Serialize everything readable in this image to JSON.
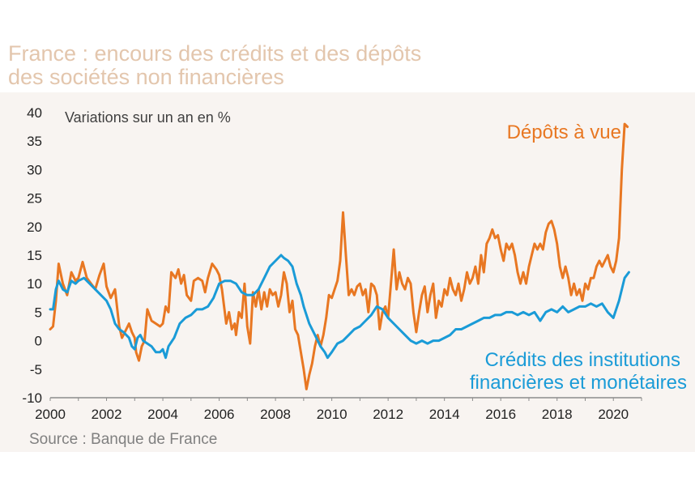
{
  "title_line1": "France : encours des crédits et des dépôts",
  "title_line2": "des sociétés non financières",
  "source": "Source : Banque de France",
  "chart_data": {
    "type": "line",
    "ylabel": "Variations sur un an en %",
    "xlim": [
      2000,
      2021
    ],
    "ylim": [
      -10,
      40
    ],
    "x_ticks": [
      "2000",
      "2002",
      "2004",
      "2006",
      "2008",
      "2010",
      "2012",
      "2014",
      "2016",
      "2018",
      "2020"
    ],
    "y_ticks": [
      "40",
      "35",
      "30",
      "25",
      "20",
      "15",
      "10",
      "5",
      "0",
      "-5",
      "-10"
    ],
    "series": [
      {
        "name": "Dépôts à vue",
        "color": "#e87722",
        "points": [
          [
            2000.0,
            2
          ],
          [
            2000.1,
            2.5
          ],
          [
            2000.2,
            7
          ],
          [
            2000.3,
            13.5
          ],
          [
            2000.45,
            10
          ],
          [
            2000.6,
            8
          ],
          [
            2000.75,
            12
          ],
          [
            2000.9,
            10.5
          ],
          [
            2001.0,
            11
          ],
          [
            2001.15,
            13.8
          ],
          [
            2001.3,
            11
          ],
          [
            2001.45,
            10
          ],
          [
            2001.6,
            9
          ],
          [
            2001.75,
            11.5
          ],
          [
            2001.9,
            13.5
          ],
          [
            2002.0,
            9.5
          ],
          [
            2002.15,
            7.5
          ],
          [
            2002.3,
            9
          ],
          [
            2002.45,
            2.5
          ],
          [
            2002.55,
            0.5
          ],
          [
            2002.7,
            2
          ],
          [
            2002.8,
            3
          ],
          [
            2002.9,
            1.5
          ],
          [
            2003.0,
            0.5
          ],
          [
            2003.05,
            -2
          ],
          [
            2003.15,
            -3.5
          ],
          [
            2003.25,
            -1
          ],
          [
            2003.35,
            0
          ],
          [
            2003.45,
            5.5
          ],
          [
            2003.6,
            3.5
          ],
          [
            2003.75,
            3
          ],
          [
            2003.9,
            2.5
          ],
          [
            2004.0,
            3
          ],
          [
            2004.1,
            6
          ],
          [
            2004.2,
            5
          ],
          [
            2004.3,
            12
          ],
          [
            2004.45,
            11
          ],
          [
            2004.55,
            12.5
          ],
          [
            2004.65,
            10
          ],
          [
            2004.75,
            11.5
          ],
          [
            2004.85,
            8
          ],
          [
            2005.0,
            7
          ],
          [
            2005.1,
            10.5
          ],
          [
            2005.25,
            11
          ],
          [
            2005.4,
            10.5
          ],
          [
            2005.5,
            8.5
          ],
          [
            2005.6,
            11
          ],
          [
            2005.75,
            13.5
          ],
          [
            2005.9,
            12.5
          ],
          [
            2006.0,
            11.5
          ],
          [
            2006.1,
            9
          ],
          [
            2006.25,
            3
          ],
          [
            2006.35,
            5
          ],
          [
            2006.45,
            2
          ],
          [
            2006.55,
            3
          ],
          [
            2006.6,
            1
          ],
          [
            2006.7,
            5
          ],
          [
            2006.8,
            4
          ],
          [
            2006.9,
            10
          ],
          [
            2007.0,
            2.5
          ],
          [
            2007.1,
            -0.5
          ],
          [
            2007.2,
            8.5
          ],
          [
            2007.3,
            6
          ],
          [
            2007.4,
            9
          ],
          [
            2007.5,
            5.5
          ],
          [
            2007.6,
            8.5
          ],
          [
            2007.7,
            6
          ],
          [
            2007.8,
            9
          ],
          [
            2007.9,
            8
          ],
          [
            2008.0,
            8.5
          ],
          [
            2008.1,
            6
          ],
          [
            2008.2,
            8
          ],
          [
            2008.3,
            12
          ],
          [
            2008.4,
            10
          ],
          [
            2008.5,
            5
          ],
          [
            2008.6,
            7
          ],
          [
            2008.7,
            2
          ],
          [
            2008.8,
            1
          ],
          [
            2008.9,
            -2
          ],
          [
            2009.0,
            -5
          ],
          [
            2009.1,
            -8.5
          ],
          [
            2009.2,
            -6
          ],
          [
            2009.3,
            -4
          ],
          [
            2009.4,
            -1
          ],
          [
            2009.5,
            1
          ],
          [
            2009.6,
            -1
          ],
          [
            2009.7,
            1
          ],
          [
            2009.8,
            4
          ],
          [
            2009.9,
            8
          ],
          [
            2010.0,
            7.5
          ],
          [
            2010.1,
            9
          ],
          [
            2010.2,
            10.5
          ],
          [
            2010.3,
            14
          ],
          [
            2010.4,
            22.5
          ],
          [
            2010.5,
            15
          ],
          [
            2010.6,
            8
          ],
          [
            2010.7,
            9
          ],
          [
            2010.8,
            8
          ],
          [
            2010.9,
            9.5
          ],
          [
            2011.0,
            10
          ],
          [
            2011.1,
            8
          ],
          [
            2011.2,
            9
          ],
          [
            2011.3,
            5
          ],
          [
            2011.4,
            10
          ],
          [
            2011.5,
            9.5
          ],
          [
            2011.6,
            8
          ],
          [
            2011.7,
            2
          ],
          [
            2011.8,
            5
          ],
          [
            2011.9,
            6
          ],
          [
            2012.0,
            4
          ],
          [
            2012.1,
            10
          ],
          [
            2012.2,
            16
          ],
          [
            2012.3,
            9
          ],
          [
            2012.4,
            12
          ],
          [
            2012.5,
            10
          ],
          [
            2012.6,
            9
          ],
          [
            2012.7,
            11
          ],
          [
            2012.8,
            10
          ],
          [
            2012.9,
            5
          ],
          [
            2013.0,
            1.5
          ],
          [
            2013.1,
            5
          ],
          [
            2013.2,
            8
          ],
          [
            2013.3,
            9.5
          ],
          [
            2013.4,
            5
          ],
          [
            2013.5,
            8
          ],
          [
            2013.6,
            10
          ],
          [
            2013.7,
            4
          ],
          [
            2013.8,
            7
          ],
          [
            2013.9,
            6
          ],
          [
            2014.0,
            9
          ],
          [
            2014.1,
            8
          ],
          [
            2014.2,
            11
          ],
          [
            2014.3,
            9
          ],
          [
            2014.4,
            8
          ],
          [
            2014.5,
            10
          ],
          [
            2014.6,
            7
          ],
          [
            2014.7,
            9
          ],
          [
            2014.8,
            12
          ],
          [
            2014.9,
            10
          ],
          [
            2015.0,
            11
          ],
          [
            2015.1,
            13
          ],
          [
            2015.2,
            10
          ],
          [
            2015.3,
            15
          ],
          [
            2015.4,
            12
          ],
          [
            2015.5,
            17
          ],
          [
            2015.6,
            18
          ],
          [
            2015.7,
            19.5
          ],
          [
            2015.8,
            18
          ],
          [
            2015.9,
            18.5
          ],
          [
            2016.0,
            16
          ],
          [
            2016.1,
            14
          ],
          [
            2016.2,
            17
          ],
          [
            2016.3,
            16
          ],
          [
            2016.4,
            17
          ],
          [
            2016.5,
            15
          ],
          [
            2016.6,
            12
          ],
          [
            2016.7,
            10
          ],
          [
            2016.8,
            12
          ],
          [
            2016.9,
            10
          ],
          [
            2017.0,
            13
          ],
          [
            2017.1,
            15
          ],
          [
            2017.2,
            17
          ],
          [
            2017.3,
            16
          ],
          [
            2017.4,
            17
          ],
          [
            2017.5,
            16
          ],
          [
            2017.6,
            19
          ],
          [
            2017.7,
            20.5
          ],
          [
            2017.8,
            21
          ],
          [
            2017.9,
            19.5
          ],
          [
            2018.0,
            17
          ],
          [
            2018.1,
            13
          ],
          [
            2018.2,
            11
          ],
          [
            2018.3,
            13
          ],
          [
            2018.4,
            11
          ],
          [
            2018.5,
            8
          ],
          [
            2018.6,
            10
          ],
          [
            2018.7,
            8
          ],
          [
            2018.8,
            9
          ],
          [
            2018.9,
            7
          ],
          [
            2019.0,
            10
          ],
          [
            2019.1,
            9
          ],
          [
            2019.2,
            11
          ],
          [
            2019.3,
            11
          ],
          [
            2019.4,
            13
          ],
          [
            2019.5,
            14
          ],
          [
            2019.6,
            13
          ],
          [
            2019.7,
            14
          ],
          [
            2019.8,
            15
          ],
          [
            2019.9,
            13
          ],
          [
            2020.0,
            12
          ],
          [
            2020.1,
            14
          ],
          [
            2020.2,
            18
          ],
          [
            2020.3,
            30
          ],
          [
            2020.4,
            38
          ],
          [
            2020.5,
            37.5
          ]
        ]
      },
      {
        "name": "Crédits des institutions financières et monétaires",
        "color": "#1a9bd7",
        "points": [
          [
            2000.0,
            5.5
          ],
          [
            2000.1,
            5.5
          ],
          [
            2000.2,
            9
          ],
          [
            2000.3,
            10.5
          ],
          [
            2000.45,
            9
          ],
          [
            2000.6,
            8.5
          ],
          [
            2000.75,
            10.5
          ],
          [
            2000.9,
            10
          ],
          [
            2001.0,
            10.5
          ],
          [
            2001.2,
            11
          ],
          [
            2001.4,
            10
          ],
          [
            2001.6,
            9
          ],
          [
            2001.8,
            8
          ],
          [
            2002.0,
            7
          ],
          [
            2002.15,
            5.5
          ],
          [
            2002.3,
            3
          ],
          [
            2002.45,
            2
          ],
          [
            2002.6,
            1.5
          ],
          [
            2002.8,
            0.5
          ],
          [
            2002.9,
            -1
          ],
          [
            2003.0,
            -1.5
          ],
          [
            2003.1,
            0.5
          ],
          [
            2003.2,
            1
          ],
          [
            2003.3,
            0
          ],
          [
            2003.45,
            -0.5
          ],
          [
            2003.6,
            -1
          ],
          [
            2003.75,
            -2
          ],
          [
            2003.9,
            -2
          ],
          [
            2004.0,
            -1.5
          ],
          [
            2004.1,
            -3
          ],
          [
            2004.2,
            -1
          ],
          [
            2004.4,
            0.5
          ],
          [
            2004.6,
            3
          ],
          [
            2004.8,
            4
          ],
          [
            2005.0,
            4.5
          ],
          [
            2005.2,
            5.5
          ],
          [
            2005.4,
            5.5
          ],
          [
            2005.6,
            6
          ],
          [
            2005.8,
            7.5
          ],
          [
            2006.0,
            10
          ],
          [
            2006.2,
            10.5
          ],
          [
            2006.4,
            10.5
          ],
          [
            2006.6,
            10
          ],
          [
            2006.8,
            8.5
          ],
          [
            2007.0,
            8
          ],
          [
            2007.2,
            8
          ],
          [
            2007.4,
            9
          ],
          [
            2007.6,
            11
          ],
          [
            2007.8,
            13
          ],
          [
            2008.0,
            14
          ],
          [
            2008.2,
            15
          ],
          [
            2008.3,
            14.5
          ],
          [
            2008.45,
            14
          ],
          [
            2008.6,
            13
          ],
          [
            2008.75,
            10
          ],
          [
            2008.9,
            8
          ],
          [
            2009.0,
            6
          ],
          [
            2009.2,
            3
          ],
          [
            2009.4,
            1
          ],
          [
            2009.6,
            -1
          ],
          [
            2009.75,
            -2
          ],
          [
            2009.85,
            -3
          ],
          [
            2010.0,
            -2
          ],
          [
            2010.2,
            -0.5
          ],
          [
            2010.4,
            0
          ],
          [
            2010.6,
            1
          ],
          [
            2010.8,
            2
          ],
          [
            2011.0,
            2.5
          ],
          [
            2011.2,
            3.5
          ],
          [
            2011.4,
            4.5
          ],
          [
            2011.6,
            6
          ],
          [
            2011.8,
            5.5
          ],
          [
            2012.0,
            4
          ],
          [
            2012.2,
            3
          ],
          [
            2012.4,
            2
          ],
          [
            2012.6,
            1
          ],
          [
            2012.8,
            0
          ],
          [
            2013.0,
            -0.5
          ],
          [
            2013.2,
            0
          ],
          [
            2013.4,
            -0.5
          ],
          [
            2013.6,
            0
          ],
          [
            2013.8,
            0
          ],
          [
            2014.0,
            0.5
          ],
          [
            2014.2,
            1
          ],
          [
            2014.4,
            2
          ],
          [
            2014.6,
            2
          ],
          [
            2014.8,
            2.5
          ],
          [
            2015.0,
            3
          ],
          [
            2015.2,
            3.5
          ],
          [
            2015.4,
            4
          ],
          [
            2015.6,
            4
          ],
          [
            2015.8,
            4.5
          ],
          [
            2016.0,
            4.5
          ],
          [
            2016.2,
            5
          ],
          [
            2016.4,
            5
          ],
          [
            2016.6,
            4.5
          ],
          [
            2016.8,
            5
          ],
          [
            2017.0,
            4.5
          ],
          [
            2017.2,
            5
          ],
          [
            2017.4,
            3.5
          ],
          [
            2017.6,
            5
          ],
          [
            2017.8,
            5.5
          ],
          [
            2018.0,
            5
          ],
          [
            2018.2,
            6
          ],
          [
            2018.4,
            5
          ],
          [
            2018.6,
            5.5
          ],
          [
            2018.8,
            6
          ],
          [
            2019.0,
            6
          ],
          [
            2019.2,
            6.5
          ],
          [
            2019.4,
            6
          ],
          [
            2019.6,
            6.5
          ],
          [
            2019.8,
            5
          ],
          [
            2020.0,
            4
          ],
          [
            2020.2,
            7
          ],
          [
            2020.4,
            11
          ],
          [
            2020.55,
            12
          ]
        ]
      }
    ]
  }
}
